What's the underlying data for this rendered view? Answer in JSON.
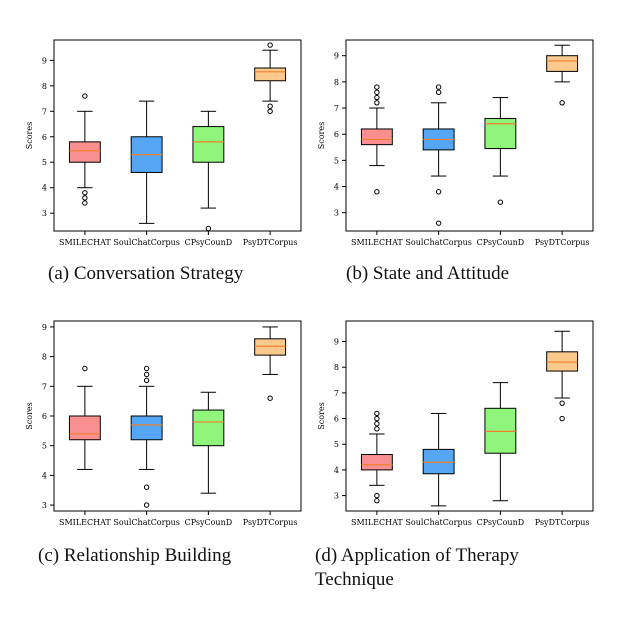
{
  "colors": {
    "SMILECHAT": "#f98f8f",
    "SoulChatCorpus": "#55a7f5",
    "CPsyCounD": "#8ff57b",
    "PsyDTCorpus": "#fbc98b",
    "median": "#f07f2d",
    "axis": "#000000"
  },
  "captions": {
    "a": "(a)  Conversation Strategy",
    "b": "(b)  State and Attitude",
    "c": "(c)  Relationship Building",
    "d_line1": "(d)  Application  of  Therapy",
    "d_line2": "Technique"
  },
  "chart_data": [
    {
      "type": "box",
      "ylabel": "Scores",
      "ylim": [
        2.3,
        9.8
      ],
      "yticks": [
        "3",
        "4",
        "5",
        "6",
        "7",
        "8",
        "9"
      ],
      "categories": [
        "SMILECHAT",
        "SoulChatCorpus",
        "CPsyCounD",
        "PsyDTCorpus"
      ],
      "boxes": [
        {
          "whislo": 4.0,
          "q1": 5.0,
          "med": 5.45,
          "q3": 5.8,
          "whishi": 7.0,
          "fliers": [
            7.6,
            3.8,
            3.6,
            3.4
          ]
        },
        {
          "whislo": 2.6,
          "q1": 4.6,
          "med": 5.3,
          "q3": 6.0,
          "whishi": 7.4,
          "fliers": []
        },
        {
          "whislo": 3.2,
          "q1": 5.0,
          "med": 5.8,
          "q3": 6.4,
          "whishi": 7.0,
          "fliers": [
            2.4
          ]
        },
        {
          "whislo": 7.4,
          "q1": 8.2,
          "med": 8.55,
          "q3": 8.7,
          "whishi": 9.4,
          "fliers": [
            9.6,
            7.2,
            7.0
          ]
        }
      ]
    },
    {
      "type": "box",
      "ylabel": "Scores",
      "ylim": [
        2.3,
        9.6
      ],
      "yticks": [
        "3",
        "4",
        "5",
        "6",
        "7",
        "8",
        "9"
      ],
      "categories": [
        "SMILECHAT",
        "SoulChatCorpus",
        "CPsyCounD",
        "PsyDTCorpus"
      ],
      "boxes": [
        {
          "whislo": 4.8,
          "q1": 5.6,
          "med": 5.8,
          "q3": 6.2,
          "whishi": 7.0,
          "fliers": [
            7.8,
            7.6,
            7.4,
            7.2,
            3.8
          ]
        },
        {
          "whislo": 4.4,
          "q1": 5.4,
          "med": 5.8,
          "q3": 6.2,
          "whishi": 7.2,
          "fliers": [
            7.8,
            7.6,
            3.8,
            2.6
          ]
        },
        {
          "whislo": 4.4,
          "q1": 5.45,
          "med": 6.4,
          "q3": 6.6,
          "whishi": 7.4,
          "fliers": [
            3.4
          ]
        },
        {
          "whislo": 8.0,
          "q1": 8.4,
          "med": 8.8,
          "q3": 9.0,
          "whishi": 9.4,
          "fliers": [
            7.2
          ]
        }
      ]
    },
    {
      "type": "box",
      "ylabel": "Scores",
      "ylim": [
        2.8,
        9.2
      ],
      "yticks": [
        "3",
        "4",
        "5",
        "6",
        "7",
        "8",
        "9"
      ],
      "categories": [
        "SMILECHAT",
        "SoulChatCorpus",
        "CPsyCounD",
        "PsyDTCorpus"
      ],
      "boxes": [
        {
          "whislo": 4.2,
          "q1": 5.2,
          "med": 5.4,
          "q3": 6.0,
          "whishi": 7.0,
          "fliers": [
            7.6
          ]
        },
        {
          "whislo": 4.2,
          "q1": 5.2,
          "med": 5.7,
          "q3": 6.0,
          "whishi": 7.0,
          "fliers": [
            7.6,
            7.4,
            7.2,
            3.6,
            3.0
          ]
        },
        {
          "whislo": 3.4,
          "q1": 5.0,
          "med": 5.8,
          "q3": 6.2,
          "whishi": 6.8,
          "fliers": []
        },
        {
          "whislo": 7.4,
          "q1": 8.05,
          "med": 8.35,
          "q3": 8.6,
          "whishi": 9.0,
          "fliers": [
            6.6
          ]
        }
      ]
    },
    {
      "type": "box",
      "ylabel": "Scores",
      "ylim": [
        2.4,
        9.8
      ],
      "yticks": [
        "3",
        "4",
        "5",
        "6",
        "7",
        "8",
        "9"
      ],
      "categories": [
        "SMILECHAT",
        "SoulChatCorpus",
        "CPsyCounD",
        "PsyDTCorpus"
      ],
      "boxes": [
        {
          "whislo": 3.4,
          "q1": 4.0,
          "med": 4.2,
          "q3": 4.6,
          "whishi": 5.4,
          "fliers": [
            6.2,
            6.0,
            5.8,
            5.6,
            3.0,
            2.8
          ]
        },
        {
          "whislo": 2.6,
          "q1": 3.85,
          "med": 4.3,
          "q3": 4.8,
          "whishi": 6.2,
          "fliers": []
        },
        {
          "whislo": 2.8,
          "q1": 4.65,
          "med": 5.5,
          "q3": 6.4,
          "whishi": 7.4,
          "fliers": []
        },
        {
          "whislo": 6.8,
          "q1": 7.85,
          "med": 8.2,
          "q3": 8.6,
          "whishi": 9.4,
          "fliers": [
            6.6,
            6.0
          ]
        }
      ]
    }
  ]
}
